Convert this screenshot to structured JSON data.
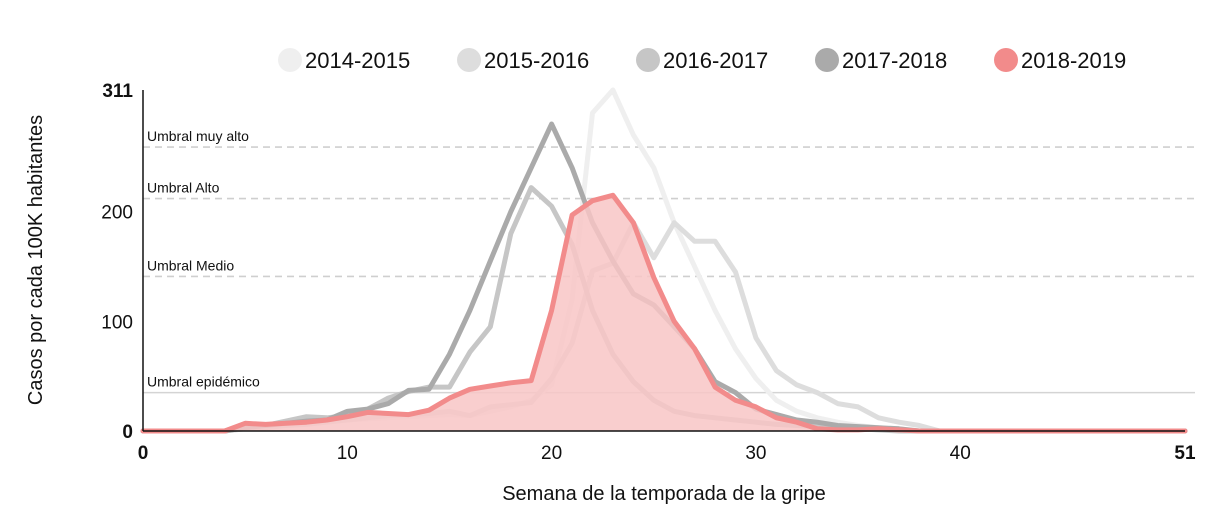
{
  "chart_data": {
    "type": "line",
    "title": "",
    "xlabel": "Semana de la temporada de la gripe",
    "ylabel": "Casos por cada 100K habitantes",
    "xlim": [
      0,
      51
    ],
    "ylim": [
      0,
      311
    ],
    "x_ticks": [
      "0",
      "10",
      "20",
      "30",
      "40",
      "51"
    ],
    "y_ticks": [
      "0",
      "100",
      "200",
      "311"
    ],
    "legend_position": "top",
    "thresholds": [
      {
        "label": "Umbral epidémico",
        "value": 35,
        "style": "solid"
      },
      {
        "label": "Umbral Medio",
        "value": 141,
        "style": "dashed"
      },
      {
        "label": "Umbral Alto",
        "value": 212,
        "style": "dashed"
      },
      {
        "label": "Umbral muy alto",
        "value": 259,
        "style": "dashed"
      }
    ],
    "x": [
      0,
      1,
      2,
      3,
      4,
      5,
      6,
      7,
      8,
      9,
      10,
      11,
      12,
      13,
      14,
      15,
      16,
      17,
      18,
      19,
      20,
      21,
      22,
      23,
      24,
      25,
      26,
      27,
      28,
      29,
      30,
      31,
      32,
      33,
      34,
      35,
      36,
      37,
      38,
      39,
      40,
      41,
      42,
      43,
      44,
      45,
      46,
      47,
      48,
      49,
      50,
      51
    ],
    "series": [
      {
        "name": "2014-2015",
        "color": "#efefef",
        "filled": false,
        "values": [
          0,
          0,
          0,
          0,
          0,
          2,
          4,
          6,
          8,
          9,
          10,
          11,
          12,
          13,
          14,
          15,
          14,
          18,
          22,
          28,
          42,
          120,
          290,
          311,
          270,
          240,
          190,
          150,
          110,
          75,
          48,
          28,
          18,
          12,
          8,
          5,
          3,
          2,
          0,
          0,
          0,
          0,
          0,
          0,
          0,
          0,
          0,
          0,
          0,
          0,
          0,
          0
        ]
      },
      {
        "name": "2015-2016",
        "color": "#dddddd",
        "filled": false,
        "values": [
          0,
          0,
          0,
          0,
          0,
          2,
          3,
          5,
          6,
          8,
          10,
          12,
          14,
          15,
          16,
          18,
          14,
          22,
          24,
          26,
          48,
          80,
          146,
          153,
          190,
          158,
          190,
          173,
          173,
          145,
          85,
          55,
          42,
          35,
          25,
          22,
          12,
          8,
          5,
          0,
          0,
          0,
          0,
          0,
          0,
          0,
          0,
          0,
          0,
          0,
          0,
          0
        ]
      },
      {
        "name": "2016-2017",
        "color": "#c6c6c6",
        "filled": false,
        "values": [
          0,
          0,
          0,
          0,
          0,
          3,
          5,
          9,
          13,
          12,
          14,
          20,
          30,
          36,
          40,
          40,
          72,
          95,
          180,
          222,
          205,
          170,
          110,
          70,
          45,
          28,
          18,
          14,
          12,
          10,
          8,
          6,
          5,
          4,
          3,
          2,
          1,
          0,
          0,
          0,
          0,
          0,
          0,
          0,
          0,
          0,
          0,
          0,
          0,
          0,
          0,
          0
        ]
      },
      {
        "name": "2017-2018",
        "color": "#aaaaaa",
        "filled": false,
        "values": [
          0,
          0,
          0,
          0,
          0,
          3,
          5,
          7,
          9,
          10,
          18,
          20,
          25,
          37,
          38,
          70,
          110,
          155,
          200,
          240,
          280,
          240,
          190,
          155,
          125,
          115,
          95,
          75,
          45,
          35,
          20,
          15,
          10,
          8,
          5,
          4,
          3,
          2,
          0,
          0,
          0,
          0,
          0,
          0,
          0,
          0,
          0,
          0,
          0,
          0,
          0,
          0
        ]
      },
      {
        "name": "2018-2019",
        "color": "#f28b8b",
        "fill": "#f8c6c6",
        "filled": true,
        "values": [
          0,
          0,
          0,
          0,
          0,
          7,
          6,
          7,
          8,
          10,
          13,
          17,
          16,
          15,
          19,
          30,
          38,
          41,
          44,
          46,
          110,
          197,
          210,
          215,
          190,
          140,
          100,
          75,
          40,
          28,
          22,
          12,
          8,
          2,
          1,
          1,
          2,
          1,
          0,
          0,
          0,
          0,
          0,
          0,
          0,
          0,
          0,
          0,
          0,
          0,
          0,
          0
        ]
      }
    ]
  }
}
